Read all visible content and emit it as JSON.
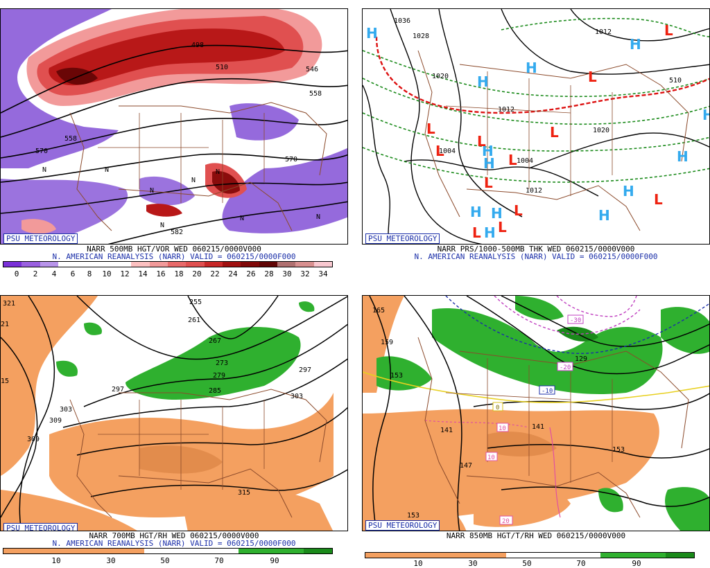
{
  "brand": "PSU METEOROLOGY",
  "colors": {
    "vor_neg": "#8a5ad8",
    "vor_pos_light": "#f29a9a",
    "vor_pos_dark": "#a01010",
    "dry": "#f4a060",
    "moist": "#2fb02f",
    "state_lines": "#8b4a2b",
    "high": "#33aaee",
    "low": "#ee2211"
  },
  "panels": [
    {
      "title_line1": "NARR 500MB HGT/VOR WED 060215/0000V000",
      "title_line2": "N. AMERICAN REANALYSIS (NARR) VALID = 060215/0000F000",
      "colorbar_ticks": [
        "0",
        "2",
        "4",
        "6",
        "8",
        "10",
        "12",
        "14",
        "16",
        "18",
        "20",
        "22",
        "24",
        "26",
        "28",
        "30",
        "32",
        "34"
      ],
      "contour_labels": [
        "498",
        "510",
        "546",
        "558",
        "558",
        "570",
        "570",
        "582"
      ],
      "vort_markers": [
        "N",
        "N",
        "N",
        "N",
        "N",
        "N",
        "N",
        "N"
      ]
    },
    {
      "title_line1": "NARR PRS/1000-500MB THK WED 060215/0000V000",
      "title_line2": "N. AMERICAN REANALYSIS (NARR) VALID = 060215/0000F000",
      "contour_labels": [
        "1036",
        "1028",
        "1020",
        "1012",
        "1004",
        "1004",
        "1012",
        "1012",
        "1020",
        "510"
      ],
      "high_markers": [
        "H",
        "H",
        "H",
        "H",
        "H",
        "H",
        "H",
        "H",
        "H",
        "H",
        "H",
        "H",
        "H"
      ],
      "low_markers": [
        "L",
        "L",
        "L",
        "L",
        "L",
        "L",
        "L",
        "L",
        "L",
        "L",
        "L",
        "L"
      ]
    },
    {
      "title_line1": "NARR 700MB HGT/RH WED 060215/0000V000",
      "title_line2": "N. AMERICAN REANALYSIS (NARR) VALID = 060215/0000F000",
      "colorbar_ticks": [
        "10",
        "30",
        "50",
        "70",
        "90"
      ],
      "contour_labels": [
        "321",
        "255",
        "261",
        "21",
        "267",
        "273",
        "279",
        "15",
        "285",
        "297",
        "297",
        "303",
        "303",
        "309",
        "309",
        "315"
      ]
    },
    {
      "title_line1": "NARR 850MB HGT/T/RH WED 060215/0000V000",
      "title_line2": "",
      "colorbar_ticks": [
        "10",
        "30",
        "50",
        "70",
        "90"
      ],
      "contour_labels": [
        "165",
        "159",
        "153",
        "129",
        "141",
        "141",
        "147",
        "153",
        "153"
      ],
      "temp_labels": [
        "-30",
        "-20",
        "-10",
        "0",
        "10",
        "10",
        "20"
      ]
    }
  ]
}
